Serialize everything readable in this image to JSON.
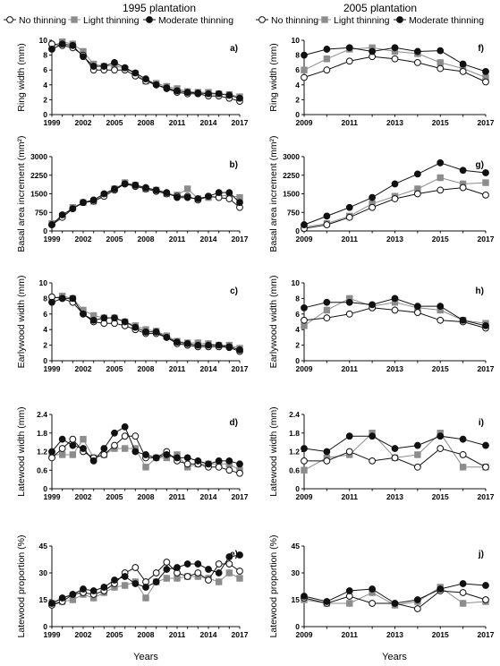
{
  "figure": {
    "column_titles": [
      "1995 plantation",
      "2005 plantation"
    ],
    "legend": [
      "No thinning",
      "Light thinning",
      "Moderate thinning"
    ],
    "x_label": "Years",
    "colors": {
      "no": "#ffffff",
      "light": "#8c8c8c",
      "moderate": "#111111",
      "axis": "#111111"
    }
  },
  "chart_data": [
    {
      "type": "line",
      "panel": "a)",
      "plantation": "1995 plantation",
      "ylabel": "Ring width (mm)",
      "ylim": [
        0,
        10
      ],
      "yticks": [
        0,
        2,
        4,
        6,
        8,
        10
      ],
      "ytick_labels": [
        "0",
        "2",
        "4",
        "6",
        "8",
        "10"
      ],
      "xlim": [
        1999,
        2017
      ],
      "xticks": [
        1999,
        2002,
        2005,
        2008,
        2011,
        2014,
        2017
      ],
      "x": [
        1999,
        2000,
        2001,
        2002,
        2003,
        2004,
        2005,
        2006,
        2007,
        2008,
        2009,
        2010,
        2011,
        2012,
        2013,
        2014,
        2015,
        2016,
        2017
      ],
      "series": [
        {
          "name": "No thinning",
          "values": [
            9.5,
            9.3,
            9.0,
            8.0,
            6.0,
            6.0,
            6.0,
            6.0,
            5.2,
            4.5,
            4.0,
            3.5,
            3.0,
            2.8,
            2.8,
            2.5,
            2.5,
            2.2,
            1.8
          ]
        },
        {
          "name": "Light thinning",
          "values": [
            9.2,
            9.8,
            9.5,
            8.5,
            6.8,
            6.5,
            6.6,
            6.2,
            5.5,
            4.5,
            4.2,
            3.8,
            3.5,
            3.1,
            3.0,
            3.0,
            2.8,
            2.7,
            2.4
          ]
        },
        {
          "name": "Moderate thinning",
          "values": [
            8.8,
            9.5,
            9.3,
            7.8,
            6.5,
            6.5,
            7.0,
            6.3,
            5.6,
            4.8,
            4.0,
            3.6,
            3.2,
            3.0,
            2.9,
            2.8,
            2.8,
            2.6,
            2.2
          ]
        }
      ]
    },
    {
      "type": "line",
      "panel": "b)",
      "plantation": "1995 plantation",
      "ylabel": "Basal area increment (mm²)",
      "ylim": [
        0,
        3000
      ],
      "yticks": [
        0,
        750,
        1500,
        2250,
        3000
      ],
      "ytick_labels": [
        "0",
        "750",
        "1500",
        "2250",
        "3000"
      ],
      "xlim": [
        1999,
        2017
      ],
      "xticks": [
        1999,
        2002,
        2005,
        2008,
        2011,
        2014,
        2017
      ],
      "x": [
        1999,
        2000,
        2001,
        2002,
        2003,
        2004,
        2005,
        2006,
        2007,
        2008,
        2009,
        2010,
        2011,
        2012,
        2013,
        2014,
        2015,
        2016,
        2017
      ],
      "series": [
        {
          "name": "No thinning",
          "values": [
            250,
            550,
            900,
            1150,
            1200,
            1400,
            1650,
            1900,
            1800,
            1700,
            1600,
            1500,
            1400,
            1400,
            1250,
            1400,
            1350,
            1300,
            950
          ]
        },
        {
          "name": "Light thinning",
          "values": [
            300,
            600,
            950,
            1150,
            1200,
            1450,
            1700,
            1950,
            1850,
            1700,
            1650,
            1500,
            1450,
            1700,
            1300,
            1350,
            1400,
            1450,
            1350
          ]
        },
        {
          "name": "Moderate thinning",
          "values": [
            250,
            650,
            900,
            1150,
            1250,
            1500,
            1700,
            1900,
            1850,
            1750,
            1650,
            1550,
            1350,
            1350,
            1300,
            1400,
            1550,
            1550,
            1150
          ]
        }
      ]
    },
    {
      "type": "line",
      "panel": "c)",
      "plantation": "1995 plantation",
      "ylabel": "Earlywood width (mm)",
      "ylim": [
        0,
        10
      ],
      "yticks": [
        0,
        2,
        4,
        6,
        8,
        10
      ],
      "ytick_labels": [
        "0",
        "2",
        "4",
        "6",
        "8",
        "10"
      ],
      "xlim": [
        1999,
        2017
      ],
      "xticks": [
        1999,
        2002,
        2005,
        2008,
        2011,
        2014,
        2017
      ],
      "x": [
        1999,
        2000,
        2001,
        2002,
        2003,
        2004,
        2005,
        2006,
        2007,
        2008,
        2009,
        2010,
        2011,
        2012,
        2013,
        2014,
        2015,
        2016,
        2017
      ],
      "series": [
        {
          "name": "No thinning",
          "values": [
            8.2,
            8.0,
            7.5,
            6.0,
            5.0,
            4.8,
            4.8,
            4.5,
            4.0,
            3.5,
            3.5,
            3.0,
            2.2,
            2.0,
            1.8,
            1.8,
            1.8,
            1.7,
            1.2
          ]
        },
        {
          "name": "Light thinning",
          "values": [
            8.0,
            8.3,
            8.0,
            6.5,
            5.8,
            5.5,
            5.5,
            5.0,
            4.5,
            4.0,
            3.8,
            3.2,
            2.5,
            2.3,
            2.3,
            2.2,
            2.0,
            2.0,
            1.6
          ]
        },
        {
          "name": "Moderate thinning",
          "values": [
            7.5,
            8.0,
            8.0,
            6.0,
            5.2,
            5.5,
            5.5,
            5.0,
            4.3,
            3.7,
            3.7,
            3.0,
            2.4,
            2.2,
            2.0,
            2.0,
            2.0,
            1.8,
            1.4
          ]
        }
      ]
    },
    {
      "type": "line",
      "panel": "d)",
      "plantation": "1995 plantation",
      "ylabel": "Latewood width (mm)",
      "ylim": [
        0,
        2.4
      ],
      "yticks": [
        0,
        0.6,
        1.2,
        1.8,
        2.4
      ],
      "ytick_labels": [
        "0",
        "0.6",
        "1.2",
        "1.8",
        "2.4"
      ],
      "xlim": [
        1999,
        2017
      ],
      "xticks": [
        1999,
        2002,
        2005,
        2008,
        2011,
        2014,
        2017
      ],
      "x": [
        1999,
        2000,
        2001,
        2002,
        2003,
        2004,
        2005,
        2006,
        2007,
        2008,
        2009,
        2010,
        2011,
        2012,
        2013,
        2014,
        2015,
        2016,
        2017
      ],
      "series": [
        {
          "name": "No thinning",
          "values": [
            1.0,
            1.3,
            1.6,
            1.2,
            1.0,
            1.1,
            1.4,
            1.7,
            1.7,
            1.0,
            1.0,
            1.2,
            0.9,
            0.8,
            0.8,
            0.7,
            0.7,
            0.6,
            0.5
          ]
        },
        {
          "name": "Light thinning",
          "values": [
            1.1,
            1.1,
            1.1,
            1.6,
            1.0,
            1.1,
            1.3,
            1.3,
            1.3,
            0.7,
            1.0,
            1.0,
            1.1,
            0.7,
            0.8,
            0.8,
            0.8,
            0.8,
            0.6
          ]
        },
        {
          "name": "Moderate thinning",
          "values": [
            1.2,
            1.6,
            1.4,
            1.3,
            0.9,
            1.3,
            1.8,
            2.0,
            1.2,
            1.1,
            1.0,
            1.1,
            1.0,
            1.0,
            0.9,
            0.8,
            0.9,
            0.9,
            0.8
          ]
        }
      ]
    },
    {
      "type": "line",
      "panel": "e)",
      "plantation": "1995 plantation",
      "ylabel": "Latewood proportion (%)",
      "ylim": [
        0,
        45
      ],
      "yticks": [
        0,
        15,
        30,
        45
      ],
      "ytick_labels": [
        "0",
        "15",
        "30",
        "45"
      ],
      "xlim": [
        1999,
        2017
      ],
      "xticks": [
        1999,
        2002,
        2005,
        2008,
        2011,
        2014,
        2017
      ],
      "x": [
        1999,
        2000,
        2001,
        2002,
        2003,
        2004,
        2005,
        2006,
        2007,
        2008,
        2009,
        2010,
        2011,
        2012,
        2013,
        2014,
        2015,
        2016,
        2017
      ],
      "series": [
        {
          "name": "No thinning",
          "values": [
            12,
            14,
            18,
            19,
            18,
            20,
            24,
            30,
            33,
            25,
            30,
            36,
            30,
            28,
            30,
            26,
            35,
            35,
            31
          ]
        },
        {
          "name": "Light thinning",
          "values": [
            13,
            14,
            15,
            18,
            16,
            19,
            22,
            23,
            25,
            16,
            25,
            27,
            27,
            28,
            28,
            27,
            25,
            30,
            27
          ]
        },
        {
          "name": "Moderate thinning",
          "values": [
            13,
            16,
            18,
            21,
            20,
            22,
            26,
            28,
            24,
            22,
            25,
            32,
            33,
            35,
            35,
            32,
            30,
            39,
            40
          ]
        }
      ]
    },
    {
      "type": "line",
      "panel": "f)",
      "plantation": "2005 plantation",
      "ylabel": "Ring width (mm)",
      "ylim": [
        0,
        10
      ],
      "yticks": [
        0,
        2,
        4,
        6,
        8,
        10
      ],
      "ytick_labels": [
        "0",
        "2",
        "4",
        "6",
        "8",
        "10"
      ],
      "xlim": [
        2009,
        2017
      ],
      "xticks": [
        2009,
        2011,
        2013,
        2015,
        2017
      ],
      "x": [
        2009,
        2010,
        2011,
        2012,
        2013,
        2014,
        2015,
        2016,
        2017
      ],
      "series": [
        {
          "name": "No thinning",
          "values": [
            5.0,
            6.0,
            7.2,
            7.8,
            7.5,
            7.0,
            6.2,
            5.8,
            4.4
          ]
        },
        {
          "name": "Light thinning",
          "values": [
            6.0,
            7.5,
            8.8,
            9.0,
            8.5,
            8.2,
            7.0,
            6.2,
            5.0
          ]
        },
        {
          "name": "Moderate thinning",
          "values": [
            8.0,
            8.8,
            9.0,
            8.5,
            9.0,
            8.5,
            8.6,
            6.8,
            5.8
          ]
        }
      ]
    },
    {
      "type": "line",
      "panel": "g)",
      "plantation": "2005 plantation",
      "ylabel": "Basal area increment (mm²)",
      "ylim": [
        0,
        3000
      ],
      "yticks": [
        0,
        750,
        1500,
        2250,
        3000
      ],
      "ytick_labels": [
        "0",
        "750",
        "1500",
        "2250",
        "3000"
      ],
      "xlim": [
        2009,
        2017
      ],
      "xticks": [
        2009,
        2011,
        2013,
        2015,
        2017
      ],
      "x": [
        2009,
        2010,
        2011,
        2012,
        2013,
        2014,
        2015,
        2016,
        2017
      ],
      "series": [
        {
          "name": "No thinning",
          "values": [
            100,
            250,
            550,
            950,
            1300,
            1500,
            1650,
            1750,
            1450
          ]
        },
        {
          "name": "Light thinning",
          "values": [
            150,
            300,
            600,
            1100,
            1400,
            1700,
            2150,
            1900,
            1950
          ]
        },
        {
          "name": "Moderate thinning",
          "values": [
            250,
            600,
            950,
            1350,
            1900,
            2300,
            2750,
            2450,
            2350
          ]
        }
      ]
    },
    {
      "type": "line",
      "panel": "h)",
      "plantation": "2005 plantation",
      "ylabel": "Earlywood width (mm)",
      "ylim": [
        0,
        10
      ],
      "yticks": [
        0,
        2,
        4,
        6,
        8,
        10
      ],
      "ytick_labels": [
        "0",
        "2",
        "4",
        "6",
        "8",
        "10"
      ],
      "xlim": [
        2009,
        2017
      ],
      "xticks": [
        2009,
        2011,
        2013,
        2015,
        2017
      ],
      "x": [
        2009,
        2010,
        2011,
        2012,
        2013,
        2014,
        2015,
        2016,
        2017
      ],
      "series": [
        {
          "name": "No thinning",
          "values": [
            5.2,
            5.5,
            6.0,
            6.8,
            6.5,
            6.2,
            5.2,
            5.0,
            4.2
          ]
        },
        {
          "name": "Light thinning",
          "values": [
            4.5,
            6.5,
            8.0,
            7.0,
            7.5,
            6.8,
            6.5,
            5.2,
            4.8
          ]
        },
        {
          "name": "Moderate thinning",
          "values": [
            6.8,
            7.5,
            7.5,
            7.2,
            8.0,
            7.0,
            7.0,
            5.2,
            4.5
          ]
        }
      ]
    },
    {
      "type": "line",
      "panel": "i)",
      "plantation": "2005 plantation",
      "ylabel": "Latewood width (mm)",
      "ylim": [
        0,
        2.4
      ],
      "yticks": [
        0,
        0.6,
        1.2,
        1.8,
        2.4
      ],
      "ytick_labels": [
        "0",
        "0.6",
        "1.2",
        "1.8",
        "2.4"
      ],
      "xlim": [
        2009,
        2017
      ],
      "xticks": [
        2009,
        2011,
        2013,
        2015,
        2017
      ],
      "x": [
        2009,
        2010,
        2011,
        2012,
        2013,
        2014,
        2015,
        2016,
        2017
      ],
      "series": [
        {
          "name": "No thinning",
          "values": [
            0.9,
            0.9,
            1.2,
            0.9,
            1.0,
            0.7,
            1.3,
            1.1,
            0.7
          ]
        },
        {
          "name": "Light thinning",
          "values": [
            0.6,
            1.0,
            1.1,
            1.8,
            1.0,
            1.1,
            1.8,
            0.7,
            0.7
          ]
        },
        {
          "name": "Moderate thinning",
          "values": [
            1.3,
            1.2,
            1.7,
            1.7,
            1.3,
            1.4,
            1.7,
            1.6,
            1.4
          ]
        }
      ]
    },
    {
      "type": "line",
      "panel": "j)",
      "plantation": "2005 plantation",
      "ylabel": "Latewood proportion (%)",
      "ylim": [
        0,
        45
      ],
      "yticks": [
        0,
        15,
        30,
        45
      ],
      "ytick_labels": [
        "0",
        "15",
        "30",
        "45"
      ],
      "xlim": [
        2009,
        2017
      ],
      "xticks": [
        2009,
        2011,
        2013,
        2015,
        2017
      ],
      "x": [
        2009,
        2010,
        2011,
        2012,
        2013,
        2014,
        2015,
        2016,
        2017
      ],
      "series": [
        {
          "name": "No thinning",
          "values": [
            16,
            13,
            17,
            13,
            13,
            10,
            20,
            19,
            15
          ]
        },
        {
          "name": "Light thinning",
          "values": [
            15,
            13,
            13,
            19,
            12,
            14,
            22,
            13,
            14
          ]
        },
        {
          "name": "Moderate thinning",
          "values": [
            17,
            14,
            20,
            21,
            13,
            15,
            21,
            24,
            23
          ]
        }
      ]
    }
  ]
}
